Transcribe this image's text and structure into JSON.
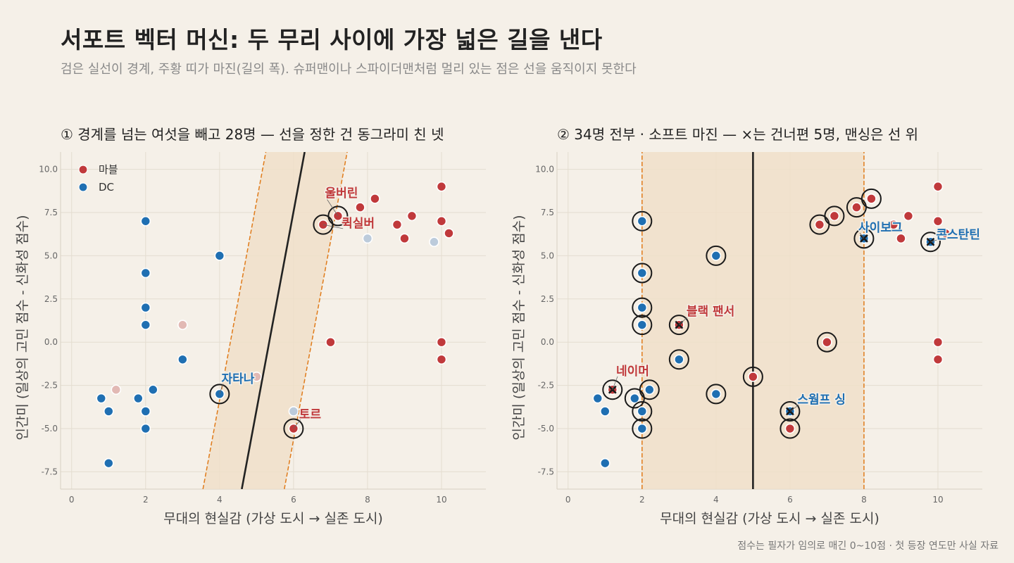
{
  "title": "서포트 벡터 머신: 두 무리 사이에 가장 넓은 길을 낸다",
  "subtitle": "검은 실선이 경계, 주황 띠가 마진(길의 폭). 슈퍼맨이나 스파이더맨처럼 멀리 있는 점은 선을 움직이지 못한다",
  "footnote": "점수는 필자가 임의로 매긴 0~10점 · 첫 등장 연도만 사실 자료",
  "colors": {
    "background": "#f5f0e8",
    "marvel": "#c0393b",
    "dc": "#1f6fb2",
    "marvel_faded": "#e2b9b4",
    "dc_faded": "#bccbdb",
    "margin_band": "#f0dfc9",
    "margin_line": "#e07b1a",
    "boundary": "#222222",
    "grid": "#e4ddd0"
  },
  "chart_data": [
    {
      "type": "scatter",
      "title": "① 경계를 넘는 여섯을 빼고 28명 — 선을 정한 건 동그라미 친 넷",
      "xlabel": "무대의 현실감  (가상 도시 → 실존 도시)",
      "ylabel": "인간미  (일상의 고민 점수 - 신화성 점수)",
      "xlim": [
        -0.3,
        11.2
      ],
      "ylim": [
        -8.5,
        11.0
      ],
      "xticks": [
        "0",
        "2",
        "4",
        "6",
        "8",
        "10"
      ],
      "xtick_values": [
        0,
        2,
        4,
        6,
        8,
        10
      ],
      "yticks": [
        "-7.5",
        "-5.0",
        "-2.5",
        "0.0",
        "2.5",
        "5.0",
        "7.5",
        "10.0"
      ],
      "ytick_values": [
        -7.5,
        -5,
        -2.5,
        0,
        2.5,
        5,
        7.5,
        10
      ],
      "grid": true,
      "legend": {
        "position": "top-left",
        "entries": [
          {
            "label": "마블",
            "key": "marvel"
          },
          {
            "label": "DC",
            "key": "dc"
          }
        ]
      },
      "boundary": {
        "x_at_y_min": 4.6,
        "x_at_y_max": 6.3,
        "y_min": -8.5,
        "y_max": 11.0
      },
      "margin_low": {
        "x_at_y_min": 3.55,
        "x_at_y_max": 5.25
      },
      "margin_high": {
        "x_at_y_min": 5.75,
        "x_at_y_max": 7.45
      },
      "points": [
        {
          "x": 10,
          "y": 9,
          "team": "marvel"
        },
        {
          "x": 10,
          "y": 7,
          "team": "marvel"
        },
        {
          "x": 10,
          "y": 0,
          "team": "marvel"
        },
        {
          "x": 10,
          "y": -1,
          "team": "marvel"
        },
        {
          "x": 10.2,
          "y": 6.3,
          "team": "marvel"
        },
        {
          "x": 9.2,
          "y": 7.3,
          "team": "marvel"
        },
        {
          "x": 9,
          "y": 6,
          "team": "marvel"
        },
        {
          "x": 8.8,
          "y": 6.8,
          "team": "marvel"
        },
        {
          "x": 8.2,
          "y": 8.3,
          "team": "marvel"
        },
        {
          "x": 7.8,
          "y": 7.8,
          "team": "marvel"
        },
        {
          "x": 7.2,
          "y": 7.3,
          "team": "marvel",
          "circled": true
        },
        {
          "x": 6.8,
          "y": 6.8,
          "team": "marvel",
          "circled": true
        },
        {
          "x": 7,
          "y": 0,
          "team": "marvel"
        },
        {
          "x": 6,
          "y": -5,
          "team": "marvel",
          "circled": true
        },
        {
          "x": 3,
          "y": 1,
          "team": "marvel",
          "faded": true
        },
        {
          "x": 5,
          "y": -2,
          "team": "marvel",
          "faded": true
        },
        {
          "x": 1.2,
          "y": -2.75,
          "team": "marvel",
          "faded": true
        },
        {
          "x": 8,
          "y": 6,
          "team": "dc",
          "faded": true
        },
        {
          "x": 9.8,
          "y": 5.8,
          "team": "dc",
          "faded": true
        },
        {
          "x": 6,
          "y": -4,
          "team": "dc",
          "faded": true
        },
        {
          "x": 2,
          "y": 7,
          "team": "dc"
        },
        {
          "x": 2,
          "y": 4,
          "team": "dc"
        },
        {
          "x": 2,
          "y": 2,
          "team": "dc"
        },
        {
          "x": 2,
          "y": 1,
          "team": "dc"
        },
        {
          "x": 4,
          "y": 5,
          "team": "dc"
        },
        {
          "x": 3,
          "y": -1,
          "team": "dc"
        },
        {
          "x": 4,
          "y": -3,
          "team": "dc",
          "circled": true
        },
        {
          "x": 2.2,
          "y": -2.75,
          "team": "dc"
        },
        {
          "x": 1.8,
          "y": -3.25,
          "team": "dc"
        },
        {
          "x": 2,
          "y": -4,
          "team": "dc"
        },
        {
          "x": 2,
          "y": -5,
          "team": "dc"
        },
        {
          "x": 0.8,
          "y": -3.25,
          "team": "dc"
        },
        {
          "x": 1,
          "y": -4,
          "team": "dc"
        },
        {
          "x": 1,
          "y": -7,
          "team": "dc"
        }
      ],
      "annotations": [
        {
          "text": "울버린",
          "x": 6.85,
          "y": 8.4,
          "team": "marvel",
          "anchor": "start",
          "ax": 7.2,
          "ay": 7.3
        },
        {
          "text": "퀵실버",
          "x": 7.3,
          "y": 6.65,
          "team": "marvel",
          "anchor": "start",
          "ax": 6.8,
          "ay": 6.8
        },
        {
          "text": "자타나",
          "x": 4.05,
          "y": -2.35,
          "team": "dc",
          "anchor": "start",
          "ax": 4,
          "ay": -3
        },
        {
          "text": "토르",
          "x": 6.15,
          "y": -4.4,
          "team": "marvel",
          "anchor": "start",
          "ax": 6,
          "ay": -5
        }
      ]
    },
    {
      "type": "scatter",
      "title": "② 34명 전부 · 소프트 마진 — ×는 건너편 5명, 맨싱은 선 위",
      "xlabel": "무대의 현실감  (가상 도시 → 실존 도시)",
      "ylabel": "인간미  (일상의 고민 점수 - 신화성 점수)",
      "xlim": [
        -0.3,
        11.2
      ],
      "ylim": [
        -8.5,
        11.0
      ],
      "xticks": [
        "0",
        "2",
        "4",
        "6",
        "8",
        "10"
      ],
      "xtick_values": [
        0,
        2,
        4,
        6,
        8,
        10
      ],
      "yticks": [
        "-7.5",
        "-5.0",
        "-2.5",
        "0.0",
        "2.5",
        "5.0",
        "7.5",
        "10.0"
      ],
      "ytick_values": [
        -7.5,
        -5,
        -2.5,
        0,
        2.5,
        5,
        7.5,
        10
      ],
      "grid": true,
      "boundary": {
        "x_at_y_min": 5.0,
        "x_at_y_max": 5.0,
        "y_min": -8.5,
        "y_max": 11.0
      },
      "margin_low": {
        "x_at_y_min": 2.0,
        "x_at_y_max": 2.0
      },
      "margin_high": {
        "x_at_y_min": 8.0,
        "x_at_y_max": 8.0
      },
      "points": [
        {
          "x": 10,
          "y": 9,
          "team": "marvel"
        },
        {
          "x": 10,
          "y": 7,
          "team": "marvel"
        },
        {
          "x": 10,
          "y": 0,
          "team": "marvel"
        },
        {
          "x": 10,
          "y": -1,
          "team": "marvel"
        },
        {
          "x": 10.2,
          "y": 6.3,
          "team": "marvel"
        },
        {
          "x": 9.2,
          "y": 7.3,
          "team": "marvel"
        },
        {
          "x": 9,
          "y": 6,
          "team": "marvel"
        },
        {
          "x": 8.8,
          "y": 6.8,
          "team": "marvel"
        },
        {
          "x": 8.2,
          "y": 8.3,
          "team": "marvel",
          "circled": true
        },
        {
          "x": 7.8,
          "y": 7.8,
          "team": "marvel",
          "circled": true
        },
        {
          "x": 7.2,
          "y": 7.3,
          "team": "marvel",
          "circled": true
        },
        {
          "x": 6.8,
          "y": 6.8,
          "team": "marvel",
          "circled": true
        },
        {
          "x": 7,
          "y": 0,
          "team": "marvel",
          "circled": true
        },
        {
          "x": 6,
          "y": -5,
          "team": "marvel",
          "circled": true
        },
        {
          "x": 5,
          "y": -2,
          "team": "marvel",
          "circled": true
        },
        {
          "x": 3,
          "y": 1,
          "team": "marvel",
          "circled": true,
          "crossed": true
        },
        {
          "x": 1.2,
          "y": -2.75,
          "team": "marvel",
          "circled": true,
          "crossed": true
        },
        {
          "x": 8,
          "y": 6,
          "team": "dc",
          "circled": true,
          "crossed": true
        },
        {
          "x": 9.8,
          "y": 5.8,
          "team": "dc",
          "circled": true,
          "crossed": true
        },
        {
          "x": 6,
          "y": -4,
          "team": "dc",
          "circled": true,
          "crossed": true
        },
        {
          "x": 2,
          "y": 7,
          "team": "dc",
          "circled": true
        },
        {
          "x": 2,
          "y": 4,
          "team": "dc",
          "circled": true
        },
        {
          "x": 2,
          "y": 2,
          "team": "dc",
          "circled": true
        },
        {
          "x": 2,
          "y": 1,
          "team": "dc",
          "circled": true
        },
        {
          "x": 4,
          "y": 5,
          "team": "dc",
          "circled": true
        },
        {
          "x": 3,
          "y": -1,
          "team": "dc",
          "circled": true
        },
        {
          "x": 4,
          "y": -3,
          "team": "dc",
          "circled": true
        },
        {
          "x": 2.2,
          "y": -2.75,
          "team": "dc",
          "circled": true
        },
        {
          "x": 1.8,
          "y": -3.25,
          "team": "dc",
          "circled": true
        },
        {
          "x": 2,
          "y": -4,
          "team": "dc",
          "circled": true
        },
        {
          "x": 2,
          "y": -5,
          "team": "dc",
          "circled": true
        },
        {
          "x": 0.8,
          "y": -3.25,
          "team": "dc"
        },
        {
          "x": 1,
          "y": -4,
          "team": "dc"
        },
        {
          "x": 1,
          "y": -7,
          "team": "dc"
        }
      ],
      "annotations": [
        {
          "text": "사이보그",
          "x": 7.85,
          "y": 6.4,
          "team": "dc",
          "anchor": "start",
          "ax": 8,
          "ay": 6
        },
        {
          "text": "콘스탄틴",
          "x": 9.95,
          "y": 6.0,
          "team": "dc",
          "anchor": "start",
          "ax": 9.8,
          "ay": 5.8
        },
        {
          "text": "블랙 팬서",
          "x": 3.2,
          "y": 1.55,
          "team": "marvel",
          "anchor": "start",
          "ax": 3,
          "ay": 1
        },
        {
          "text": "네이머",
          "x": 1.3,
          "y": -1.9,
          "team": "marvel",
          "anchor": "start",
          "ax": 1.2,
          "ay": -2.75
        },
        {
          "text": "스웜프 싱",
          "x": 6.2,
          "y": -3.55,
          "team": "dc",
          "anchor": "start",
          "ax": 6,
          "ay": -4
        }
      ]
    }
  ]
}
